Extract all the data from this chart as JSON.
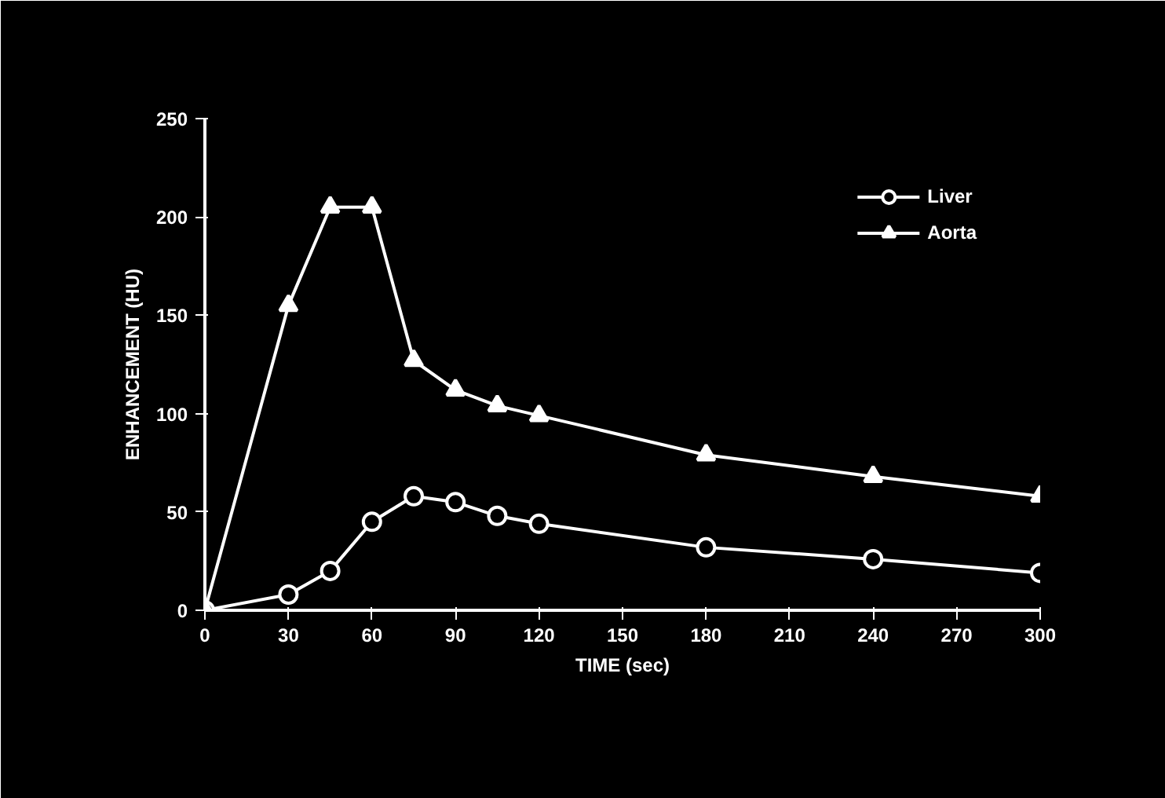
{
  "chart_data": {
    "type": "line",
    "xlabel": "TIME (sec)",
    "ylabel": "ENHANCEMENT (HU)",
    "x": [
      0,
      30,
      45,
      60,
      75,
      90,
      105,
      120,
      180,
      240,
      300
    ],
    "series": [
      {
        "name": "Liver",
        "color": "#ffffff",
        "marker": "circle",
        "values": [
          0,
          8,
          20,
          45,
          58,
          55,
          48,
          44,
          32,
          26,
          19
        ]
      },
      {
        "name": "Aorta",
        "color": "#ffffff",
        "marker": "triangle",
        "values": [
          0,
          155,
          205,
          205,
          127,
          112,
          104,
          99,
          79,
          68,
          58
        ]
      }
    ],
    "xlim": [
      0,
      300
    ],
    "ylim": [
      0,
      250
    ],
    "xticks": [
      0,
      30,
      60,
      90,
      120,
      150,
      180,
      210,
      240,
      270,
      300
    ],
    "yticks": [
      0,
      50,
      100,
      150,
      200,
      250
    ],
    "grid": false,
    "legend": "top right",
    "line_style": "solid"
  }
}
